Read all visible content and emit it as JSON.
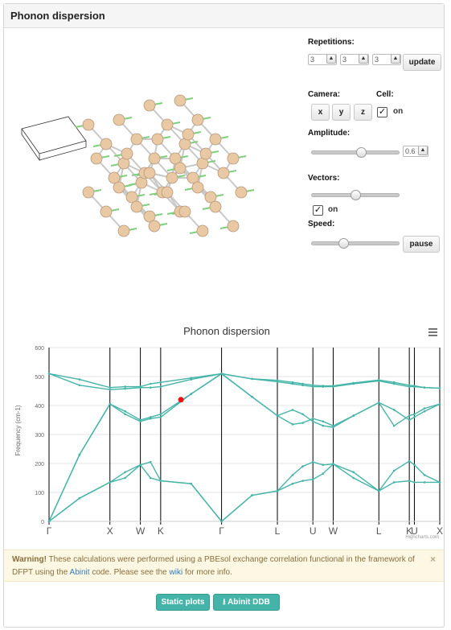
{
  "panel": {
    "title": "Phonon dispersion"
  },
  "controls": {
    "repetitions_label": "Repetitions:",
    "repetitions": [
      "3",
      "3",
      "3"
    ],
    "update_label": "update",
    "camera_label": "Camera:",
    "camera_buttons": [
      "x",
      "y",
      "z"
    ],
    "cell_label": "Cell:",
    "cell_on_label": "on",
    "cell_checked": true,
    "amplitude_label": "Amplitude:",
    "amplitude_value": "0.6",
    "amplitude_slider": 0.58,
    "vectors_label": "Vectors:",
    "vectors_slider": 0.5,
    "vectors_on_label": "on",
    "vectors_checked": true,
    "speed_label": "Speed:",
    "speed_slider": 0.35,
    "pause_label": "pause"
  },
  "viewer": {
    "atom_color": "#e8c9a3",
    "bond_color": "#c8c8c8",
    "vector_color": "#7fcf7f"
  },
  "chart_data": {
    "type": "line",
    "title": "Phonon dispersion",
    "ylabel": "Frequency (cm-1)",
    "ylim": [
      0,
      600
    ],
    "yticks": [
      0,
      100,
      200,
      300,
      400,
      500,
      600
    ],
    "xlim": [
      0,
      3.85
    ],
    "tick_positions": [
      0,
      0.6,
      0.9,
      1.1,
      1.7,
      2.25,
      2.6,
      2.8,
      3.25,
      3.55,
      3.6,
      3.85
    ],
    "tick_labels": [
      "Γ",
      "X",
      "W",
      "K",
      "Γ",
      "L",
      "U",
      "W",
      "L",
      "K",
      "U",
      "X"
    ],
    "series_color": "#45b4a8",
    "series": [
      {
        "x": [
          0,
          0.3,
          0.6,
          0.75,
          0.9,
          1.0,
          1.1,
          1.4,
          1.7,
          2.0,
          2.25,
          2.4,
          2.5,
          2.6,
          2.7,
          2.8,
          3.0,
          3.25,
          3.4,
          3.55,
          3.6,
          3.7,
          3.85
        ],
        "y": [
          0,
          80,
          135,
          150,
          195,
          205,
          140,
          130,
          0,
          90,
          105,
          160,
          190,
          205,
          195,
          198,
          170,
          105,
          175,
          208,
          195,
          160,
          135
        ]
      },
      {
        "x": [
          0,
          0.3,
          0.6,
          0.75,
          0.9,
          1.0,
          1.1,
          1.4,
          1.7,
          2.0,
          2.25,
          2.4,
          2.5,
          2.6,
          2.7,
          2.8,
          3.0,
          3.25,
          3.4,
          3.55,
          3.6,
          3.7,
          3.85
        ],
        "y": [
          0,
          80,
          135,
          170,
          195,
          150,
          140,
          130,
          0,
          90,
          105,
          130,
          140,
          145,
          165,
          198,
          150,
          105,
          135,
          140,
          135,
          135,
          135
        ]
      },
      {
        "x": [
          0,
          0.3,
          0.6,
          0.75,
          0.9,
          1.0,
          1.1,
          1.4,
          1.7,
          2.0,
          2.25,
          2.4,
          2.5,
          2.6,
          2.7,
          2.8,
          3.0,
          3.25,
          3.4,
          3.55,
          3.6,
          3.7,
          3.85
        ],
        "y": [
          0,
          230,
          405,
          380,
          350,
          360,
          370,
          440,
          510,
          430,
          365,
          335,
          340,
          355,
          345,
          330,
          365,
          410,
          385,
          350,
          360,
          380,
          405
        ]
      },
      {
        "x": [
          0,
          0.3,
          0.6,
          0.75,
          0.9,
          1.0,
          1.1,
          1.4,
          1.7,
          2.0,
          2.25,
          2.4,
          2.5,
          2.6,
          2.7,
          2.8,
          3.0,
          3.25,
          3.4,
          3.55,
          3.6,
          3.7,
          3.85
        ],
        "y": [
          0,
          230,
          405,
          370,
          345,
          355,
          360,
          440,
          510,
          430,
          365,
          385,
          370,
          345,
          330,
          325,
          365,
          410,
          330,
          365,
          370,
          390,
          405
        ]
      },
      {
        "x": [
          0,
          0.3,
          0.6,
          0.75,
          0.9,
          1.0,
          1.1,
          1.4,
          1.7,
          2.0,
          2.25,
          2.4,
          2.5,
          2.6,
          2.7,
          2.8,
          3.0,
          3.25,
          3.4,
          3.55,
          3.6,
          3.7,
          3.85
        ],
        "y": [
          510,
          490,
          462,
          465,
          465,
          475,
          480,
          495,
          510,
          492,
          482,
          475,
          470,
          465,
          465,
          465,
          475,
          485,
          475,
          465,
          465,
          462,
          460
        ]
      },
      {
        "x": [
          0,
          0.3,
          0.6,
          0.75,
          0.9,
          1.0,
          1.1,
          1.4,
          1.7,
          2.0,
          2.25,
          2.4,
          2.5,
          2.6,
          2.7,
          2.8,
          3.0,
          3.25,
          3.4,
          3.55,
          3.6,
          3.7,
          3.85
        ],
        "y": [
          510,
          470,
          455,
          458,
          462,
          462,
          465,
          490,
          510,
          492,
          487,
          480,
          475,
          470,
          468,
          468,
          478,
          488,
          480,
          470,
          468,
          462,
          460
        ]
      }
    ],
    "marker": {
      "x": 1.3,
      "y": 420,
      "color": "#ee1111"
    },
    "credit": "Highcharts.com"
  },
  "warning": {
    "bold": "Warning!",
    "text1": " These calculations were performed using a PBEsol exchange correlation functional in the framework of DFPT using the ",
    "link1": "Abinit",
    "text2": " code. Please see the ",
    "link2": "wiki",
    "text3": " for more info.",
    "close": "×"
  },
  "footer": {
    "static_plots_label": "Static plots",
    "abinit_ddb_label": "Abinit DDB"
  }
}
